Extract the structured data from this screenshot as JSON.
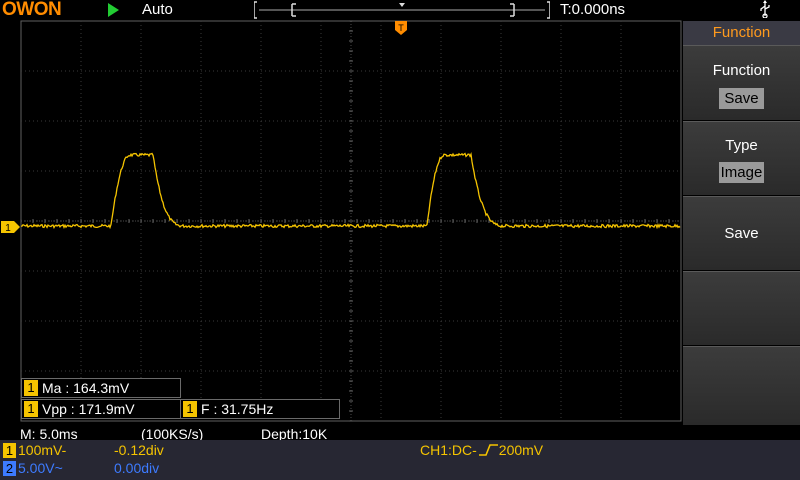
{
  "top_bar": {
    "logo": "OWON",
    "trigger_mode": "Auto",
    "time_offset": "T:0.000ns"
  },
  "menu": {
    "header": "Function",
    "items": [
      {
        "title": "Function",
        "value": "Save"
      },
      {
        "title": "Type",
        "value": "Image"
      },
      {
        "title": "Save",
        "value": ""
      },
      {
        "title": "",
        "value": ""
      },
      {
        "title": "",
        "value": ""
      }
    ]
  },
  "measurements": {
    "ma": {
      "channel": "1",
      "text": "Ma : 164.3mV"
    },
    "vpp": {
      "channel": "1",
      "text": "Vpp : 171.9mV"
    },
    "freq": {
      "channel": "1",
      "text": "F : 31.75Hz"
    }
  },
  "status": {
    "timebase": "M: 5.0ms",
    "sample_rate": "(100KS/s)",
    "depth": "Depth:10K",
    "ch1": {
      "label": "1",
      "scale": "100mV-",
      "offset": "-0.12div"
    },
    "ch2": {
      "label": "2",
      "scale": "5.00V~",
      "offset": "0.00div"
    },
    "trigger": "CH1:DC-",
    "trigger_level": "200mV"
  },
  "markers": {
    "trigger_marker": "T",
    "ch1_marker": "1"
  },
  "colors": {
    "ch1": "#f5c400",
    "ch2": "#3d7bff",
    "accent": "#ff8c00",
    "grid": "#404040"
  }
}
